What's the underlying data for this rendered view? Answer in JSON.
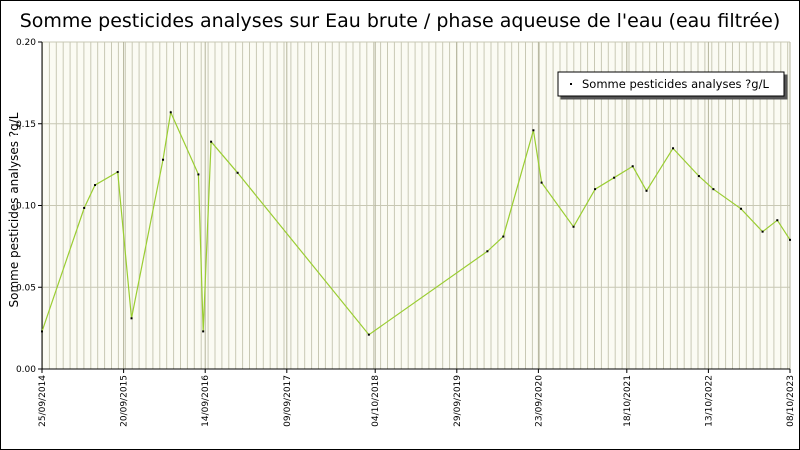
{
  "chart_data": {
    "type": "line",
    "title": "Somme pesticides analyses sur Eau brute / phase aqueuse de l'eau (eau filtrée)",
    "y_label": "Somme pesticides analyses ?g/L",
    "x": [
      "2014-09-25",
      "2015-03-30",
      "2015-05-17",
      "2015-08-25",
      "2015-10-25",
      "2016-03-12",
      "2016-04-15",
      "2016-08-15",
      "2016-09-05",
      "2016-10-10",
      "2017-02-04",
      "2018-09-06",
      "2020-02-11",
      "2020-04-21",
      "2020-09-01",
      "2020-10-07",
      "2021-02-25",
      "2021-05-31",
      "2021-08-23",
      "2021-11-13",
      "2022-01-13",
      "2022-05-10",
      "2022-09-01",
      "2022-11-04",
      "2023-03-06",
      "2023-06-09",
      "2023-08-13",
      "2023-10-08"
    ],
    "series": [
      {
        "name": "Somme pesticides analyses ?g/L",
        "color": "#9acd32",
        "values": [
          0.023,
          0.0985,
          0.1125,
          0.1205,
          0.031,
          0.128,
          0.157,
          0.119,
          0.023,
          0.139,
          0.12,
          0.021,
          0.072,
          0.081,
          0.146,
          0.114,
          0.087,
          0.11,
          0.117,
          0.124,
          0.109,
          0.135,
          0.118,
          0.11,
          0.098,
          0.084,
          0.091,
          0.079
        ]
      }
    ],
    "xlim": [
      "2014-09-25",
      "2023-10-08"
    ],
    "xticks": [
      {
        "value": "2014-09-25",
        "label": "25/09/2014"
      },
      {
        "value": "2015-09-20",
        "label": "20/09/2015"
      },
      {
        "value": "2016-09-14",
        "label": "14/09/2016"
      },
      {
        "value": "2017-09-09",
        "label": "09/09/2017"
      },
      {
        "value": "2018-10-04",
        "label": "04/10/2018"
      },
      {
        "value": "2019-09-29",
        "label": "29/09/2019"
      },
      {
        "value": "2020-09-23",
        "label": "23/09/2020"
      },
      {
        "value": "2021-10-18",
        "label": "18/10/2021"
      },
      {
        "value": "2022-10-13",
        "label": "13/10/2022"
      },
      {
        "value": "2023-10-08",
        "label": "08/10/2023"
      }
    ],
    "ylim": [
      0,
      0.2
    ],
    "yticks": [
      {
        "value": 0,
        "label": "0.00"
      },
      {
        "value": 0.05,
        "label": "0.05"
      },
      {
        "value": 0.1,
        "label": "0.10"
      },
      {
        "value": 0.15,
        "label": "0.15"
      },
      {
        "value": 0.2,
        "label": "0.20"
      }
    ],
    "grid": true,
    "legend": "top-right"
  }
}
